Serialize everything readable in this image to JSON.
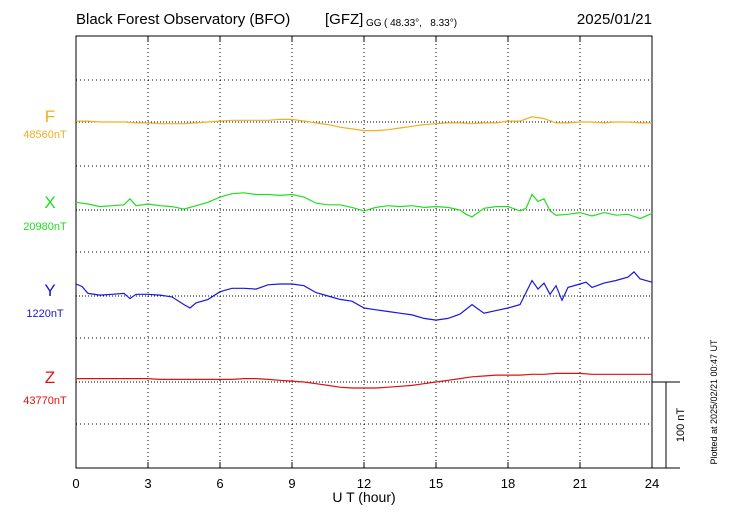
{
  "header": {
    "title": "Black Forest Observatory (BFO)",
    "institute": "[GFZ]",
    "coords_prefix": "GG",
    "coords": "( 48.33°,   8.33°)",
    "date": "2025/01/21"
  },
  "xlabel": "U T (hour)",
  "scale_label": "100 nT",
  "plotted_note": "Plotted at 2025/02/21 00:47 UT",
  "chart_data": {
    "type": "line",
    "xlim": [
      0,
      24
    ],
    "xticks": [
      0,
      3,
      6,
      9,
      12,
      15,
      18,
      21,
      24
    ],
    "xtick_labels": [
      "0",
      "3",
      "6",
      "9",
      "12",
      "15",
      "18",
      "21",
      "24"
    ],
    "grid": true,
    "scale_bar_nT": 100,
    "series": [
      {
        "name": "F",
        "baseline_label": "48560nT",
        "baseline_nT": 48560,
        "color": "#f0b020",
        "x": [
          0,
          0.5,
          1,
          1.5,
          2,
          2.5,
          3,
          3.5,
          4,
          4.5,
          5,
          5.5,
          6,
          6.5,
          7,
          7.5,
          8,
          8.5,
          9,
          9.5,
          10,
          10.5,
          11,
          11.5,
          12,
          12.5,
          13,
          13.5,
          14,
          14.5,
          15,
          15.5,
          16,
          16.5,
          17,
          17.5,
          18,
          18.5,
          19,
          19.5,
          20,
          20.5,
          21,
          21.5,
          22,
          22.5,
          23,
          23.5,
          24
        ],
        "y": [
          48561,
          48561,
          48560,
          48560,
          48560,
          48559,
          48559,
          48558,
          48558,
          48558,
          48559,
          48560,
          48561,
          48562,
          48562,
          48562,
          48562,
          48563,
          48563,
          48561,
          48559,
          48557,
          48554,
          48552,
          48550,
          48550,
          48551,
          48553,
          48555,
          48557,
          48558,
          48559,
          48559,
          48558,
          48559,
          48559,
          48561,
          48561,
          48566,
          48564,
          48559,
          48559,
          48560,
          48560,
          48559,
          48560,
          48560,
          48559,
          48559
        ]
      },
      {
        "name": "X",
        "baseline_label": "20980nT",
        "baseline_nT": 20980,
        "color": "#22dd22",
        "x": [
          0,
          0.5,
          1,
          1.5,
          2,
          2.25,
          2.5,
          3,
          3.5,
          4,
          4.5,
          5,
          5.5,
          6,
          6.5,
          7,
          7.5,
          8,
          8.5,
          9,
          9.5,
          10,
          10.5,
          11,
          11.5,
          12,
          12.5,
          13,
          13.5,
          14,
          14.5,
          15,
          15.5,
          16,
          16.25,
          16.5,
          17,
          17.5,
          18,
          18.5,
          18.75,
          19,
          19.25,
          19.5,
          19.75,
          20,
          20.5,
          21,
          21.5,
          22,
          22.5,
          23,
          23.5,
          24
        ],
        "y": [
          20989,
          20987,
          20984,
          20985,
          20986,
          20993,
          20985,
          20987,
          20985,
          20984,
          20981,
          20985,
          20989,
          20995,
          20999,
          21000,
          20998,
          20998,
          20997,
          20998,
          20995,
          20988,
          20986,
          20986,
          20983,
          20979,
          20983,
          20985,
          20984,
          20985,
          20983,
          20984,
          20983,
          20980,
          20975,
          20972,
          20982,
          20984,
          20984,
          20979,
          20982,
          20998,
          20990,
          20993,
          20979,
          20974,
          20975,
          20977,
          20973,
          20977,
          20974,
          20975,
          20970,
          20976
        ]
      },
      {
        "name": "Y",
        "baseline_label": "1220nT",
        "baseline_nT": 1220,
        "color": "#1818dd",
        "x": [
          0,
          0.25,
          0.5,
          1,
          1.5,
          2,
          2.25,
          2.5,
          3,
          3.5,
          4,
          4.5,
          4.75,
          5,
          5.5,
          6,
          6.5,
          7,
          7.5,
          8,
          8.5,
          9,
          9.5,
          10,
          10.5,
          11,
          11.5,
          12,
          12.5,
          13,
          13.5,
          14,
          14.5,
          15,
          15.5,
          16,
          16.5,
          17,
          17.5,
          18,
          18.5,
          19,
          19.25,
          19.5,
          19.75,
          20,
          20.25,
          20.5,
          21,
          21.25,
          21.5,
          22,
          22.5,
          23,
          23.25,
          23.5,
          24
        ],
        "y": [
          1234,
          1231,
          1223,
          1221,
          1222,
          1223,
          1217,
          1222,
          1222,
          1221,
          1219,
          1210,
          1206,
          1212,
          1216,
          1225,
          1229,
          1229,
          1228,
          1233,
          1234,
          1234,
          1232,
          1224,
          1220,
          1216,
          1214,
          1206,
          1204,
          1202,
          1200,
          1198,
          1194,
          1192,
          1194,
          1199,
          1210,
          1200,
          1203,
          1206,
          1210,
          1238,
          1228,
          1235,
          1222,
          1232,
          1215,
          1230,
          1234,
          1236,
          1230,
          1235,
          1238,
          1242,
          1248,
          1240,
          1236
        ]
      },
      {
        "name": "Z",
        "baseline_label": "43770nT",
        "baseline_nT": 43770,
        "color": "#dd1111",
        "x": [
          0,
          0.5,
          1,
          1.5,
          2,
          2.5,
          3,
          3.5,
          4,
          4.5,
          5,
          5.5,
          6,
          6.5,
          7,
          7.5,
          8,
          8.5,
          9,
          9.5,
          10,
          10.5,
          11,
          11.5,
          12,
          12.5,
          13,
          13.5,
          14,
          14.5,
          15,
          15.5,
          16,
          16.5,
          17,
          17.5,
          18,
          18.5,
          19,
          19.5,
          20,
          20.5,
          21,
          21.5,
          22,
          22.5,
          23,
          23.5,
          24
        ],
        "y": [
          43774,
          43774,
          43774,
          43774,
          43774,
          43774,
          43774,
          43773,
          43773,
          43773,
          43773,
          43773,
          43773,
          43773,
          43774,
          43774,
          43773,
          43772,
          43771,
          43770,
          43768,
          43766,
          43764,
          43763,
          43763,
          43763,
          43764,
          43765,
          43766,
          43768,
          43770,
          43772,
          43774,
          43776,
          43777,
          43778,
          43778,
          43778,
          43779,
          43779,
          43780,
          43780,
          43780,
          43779,
          43779,
          43779,
          43779,
          43779,
          43779
        ]
      }
    ]
  }
}
